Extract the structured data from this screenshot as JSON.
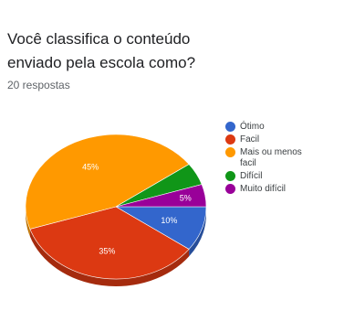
{
  "title": "Você classifica o conteúdo\nenviado pela escola como?",
  "response_count": "20 respostas",
  "colors": {
    "otimo": "#3366cc",
    "facil": "#dc3912",
    "mais_ou_menos": "#ff9900",
    "dificil": "#109618",
    "muito_dificil": "#990099"
  },
  "chart_data": {
    "type": "pie",
    "title": "Você classifica o conteúdo enviado pela escola como?",
    "categories": [
      "Ótimo",
      "Facil",
      "Mais ou menos facil",
      "Difícil",
      "Muito difícil"
    ],
    "values": [
      10,
      35,
      45,
      5,
      5
    ],
    "data_labels": [
      "10%",
      "35%",
      "45%",
      "",
      "5%"
    ],
    "colors": [
      "#3366cc",
      "#dc3912",
      "#ff9900",
      "#109618",
      "#990099"
    ],
    "legend_position": "right"
  },
  "legend": [
    {
      "label": "Ótimo",
      "color": "#3366cc"
    },
    {
      "label": "Facil",
      "color": "#dc3912"
    },
    {
      "label": "Mais ou menos facil",
      "color": "#ff9900"
    },
    {
      "label": "Difícil",
      "color": "#109618"
    },
    {
      "label": "Muito difícil",
      "color": "#990099"
    }
  ]
}
